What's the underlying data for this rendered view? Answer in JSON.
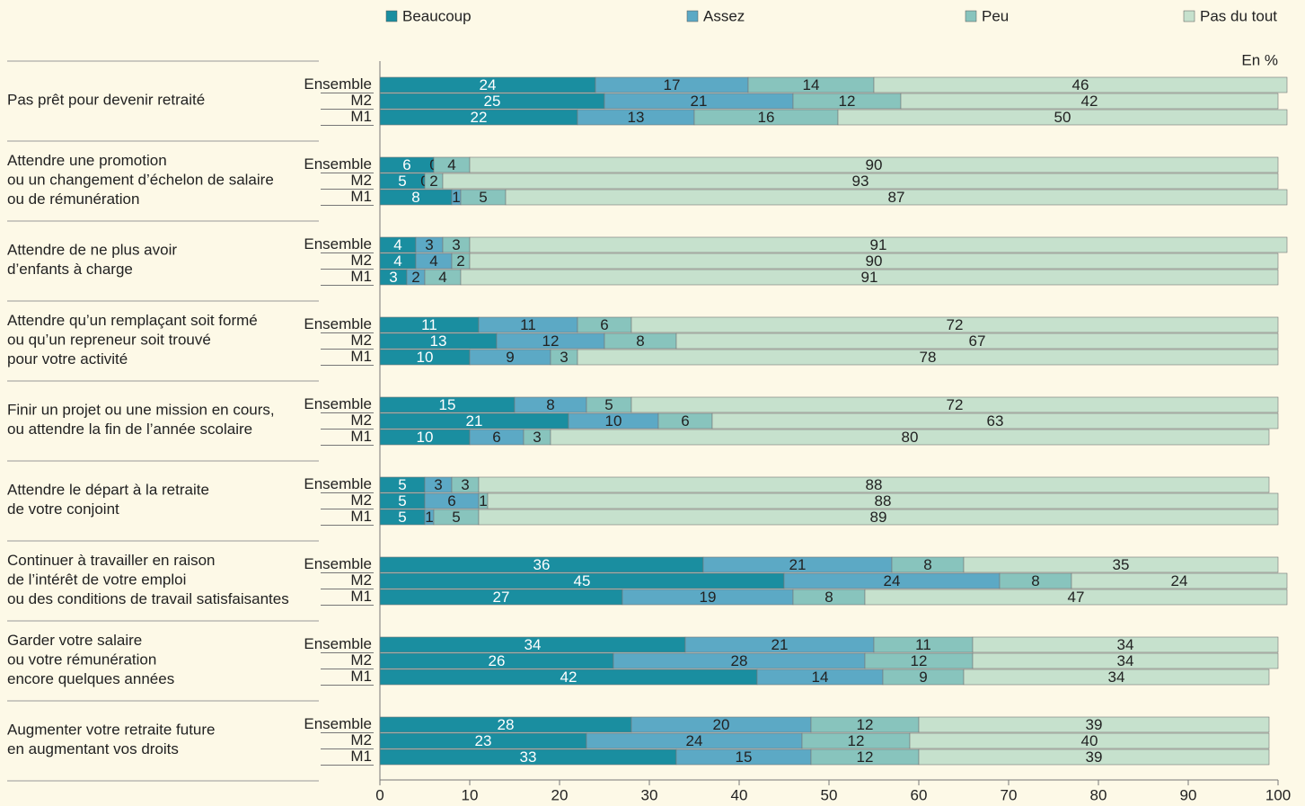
{
  "chart_data": {
    "type": "stacked-bar-horizontal",
    "unit_label": "En %",
    "groups": [
      [
        "Pas prêt pour devenir retraité"
      ],
      [
        "Attendre une promotion",
        "ou un changement d’échelon de salaire",
        "ou de rémunération"
      ],
      [
        "Attendre de ne plus avoir",
        "d’enfants à charge"
      ],
      [
        "Attendre qu’un remplaçant soit formé",
        "ou qu’un repreneur soit trouvé",
        "pour votre activité"
      ],
      [
        "Finir un projet ou une mission en cours,",
        "ou attendre la fin de l’année scolaire"
      ],
      [
        "Attendre le départ à la retraite",
        "de votre conjoint"
      ],
      [
        "Continuer à travailler en raison",
        "de l’intérêt de votre emploi",
        "ou des conditions de travail satisfaisantes"
      ],
      [
        "Garder votre salaire",
        "ou votre rémunération",
        "encore quelques années"
      ],
      [
        "Augmenter votre retraite future",
        "en augmentant vos droits"
      ]
    ],
    "subgroups": [
      "Ensemble",
      "M2",
      "M1"
    ],
    "series": [
      {
        "name": "Beaucoup",
        "color": "#1a8ea0",
        "values": [
          [
            24,
            25,
            22
          ],
          [
            6,
            5,
            8
          ],
          [
            4,
            4,
            3
          ],
          [
            11,
            13,
            10
          ],
          [
            15,
            21,
            10
          ],
          [
            5,
            5,
            5
          ],
          [
            36,
            45,
            27
          ],
          [
            34,
            26,
            42
          ],
          [
            28,
            23,
            33
          ]
        ]
      },
      {
        "name": "Assez",
        "color": "#5ca9c5",
        "values": [
          [
            17,
            21,
            13
          ],
          [
            0,
            0,
            1
          ],
          [
            3,
            4,
            2
          ],
          [
            11,
            12,
            9
          ],
          [
            8,
            10,
            6
          ],
          [
            3,
            6,
            1
          ],
          [
            21,
            24,
            19
          ],
          [
            21,
            28,
            14
          ],
          [
            20,
            24,
            15
          ]
        ]
      },
      {
        "name": "Peu",
        "color": "#88c4bd",
        "values": [
          [
            14,
            12,
            16
          ],
          [
            4,
            2,
            5
          ],
          [
            3,
            2,
            4
          ],
          [
            6,
            8,
            3
          ],
          [
            5,
            6,
            3
          ],
          [
            3,
            1,
            5
          ],
          [
            8,
            8,
            8
          ],
          [
            11,
            12,
            9
          ],
          [
            12,
            12,
            12
          ]
        ]
      },
      {
        "name": "Pas du tout",
        "color": "#c6e1cd",
        "values": [
          [
            46,
            42,
            50
          ],
          [
            90,
            93,
            87
          ],
          [
            91,
            90,
            91
          ],
          [
            72,
            67,
            78
          ],
          [
            72,
            63,
            80
          ],
          [
            88,
            88,
            89
          ],
          [
            35,
            24,
            47
          ],
          [
            34,
            34,
            34
          ],
          [
            39,
            40,
            39
          ]
        ]
      }
    ],
    "xlim": [
      0,
      100
    ],
    "xticks": [
      0,
      10,
      20,
      30,
      40,
      50,
      60,
      70,
      80,
      90,
      100
    ]
  }
}
